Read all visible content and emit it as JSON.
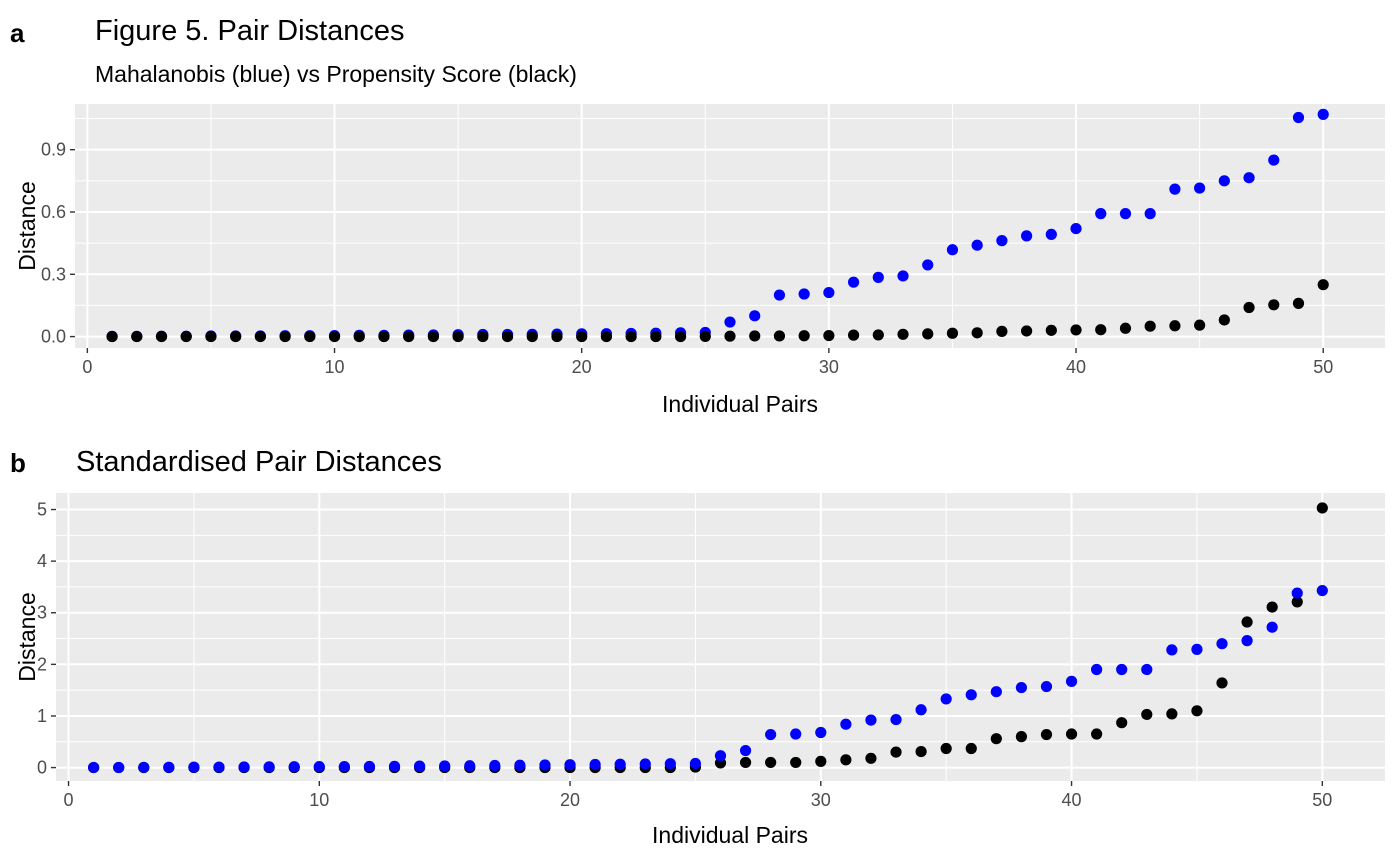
{
  "chart_data": [
    {
      "type": "scatter",
      "panel_tag": "a",
      "title": "Figure 5. Pair Distances",
      "subtitle": "Mahalanobis (blue) vs Propensity Score (black)",
      "xlabel": "Individual Pairs",
      "ylabel": "Distance",
      "xlim": [
        -0.5,
        52.5
      ],
      "ylim": [
        -0.055,
        1.12
      ],
      "x_ticks": [
        0,
        10,
        20,
        30,
        40,
        50
      ],
      "y_ticks": [
        0.0,
        0.3,
        0.6,
        0.9
      ],
      "y_tick_labels": [
        "0.0",
        "0.3",
        "0.6",
        "0.9"
      ],
      "grid": true,
      "series": [
        {
          "color": "#0000ff",
          "x": [
            1,
            2,
            3,
            4,
            5,
            6,
            7,
            8,
            9,
            10,
            11,
            12,
            13,
            14,
            15,
            16,
            17,
            18,
            19,
            20,
            21,
            22,
            23,
            24,
            25,
            26,
            27,
            28,
            29,
            30,
            31,
            32,
            33,
            34,
            35,
            36,
            37,
            38,
            39,
            40,
            41,
            42,
            43,
            44,
            45,
            46,
            47,
            48,
            49,
            50
          ],
          "y": [
            0.001,
            0.001,
            0.002,
            0.002,
            0.003,
            0.003,
            0.003,
            0.004,
            0.004,
            0.005,
            0.006,
            0.006,
            0.007,
            0.008,
            0.009,
            0.01,
            0.01,
            0.011,
            0.012,
            0.013,
            0.014,
            0.015,
            0.016,
            0.018,
            0.02,
            0.07,
            0.1,
            0.2,
            0.205,
            0.212,
            0.262,
            0.285,
            0.292,
            0.345,
            0.418,
            0.44,
            0.462,
            0.485,
            0.492,
            0.52,
            0.592,
            0.592,
            0.592,
            0.71,
            0.715,
            0.75,
            0.765,
            0.85,
            1.055,
            1.07
          ]
        },
        {
          "color": "#000000",
          "x": [
            1,
            2,
            3,
            4,
            5,
            6,
            7,
            8,
            9,
            10,
            11,
            12,
            13,
            14,
            15,
            16,
            17,
            18,
            19,
            20,
            21,
            22,
            23,
            24,
            25,
            26,
            27,
            28,
            29,
            30,
            31,
            32,
            33,
            34,
            35,
            36,
            37,
            38,
            39,
            40,
            41,
            42,
            43,
            44,
            45,
            46,
            47,
            48,
            49,
            50
          ],
          "y": [
            0.0,
            0.0,
            0.0,
            0.0,
            0.0,
            0.0,
            0.0,
            0.0,
            0.0,
            0.0,
            0.0,
            0.0,
            0.0,
            0.0,
            0.0,
            0.0,
            0.0,
            0.0,
            0.0,
            0.0,
            0.0,
            0.0,
            0.0,
            0.0,
            0.001,
            0.002,
            0.003,
            0.003,
            0.004,
            0.005,
            0.007,
            0.008,
            0.011,
            0.013,
            0.016,
            0.018,
            0.025,
            0.027,
            0.03,
            0.032,
            0.033,
            0.04,
            0.05,
            0.052,
            0.055,
            0.08,
            0.14,
            0.153,
            0.16,
            0.25
          ]
        }
      ]
    },
    {
      "type": "scatter",
      "panel_tag": "b",
      "title": "Standardised Pair Distances",
      "subtitle": "",
      "xlabel": "Individual Pairs",
      "ylabel": "Distance",
      "xlim": [
        -0.5,
        52.5
      ],
      "ylim": [
        -0.26,
        5.32
      ],
      "x_ticks": [
        0,
        10,
        20,
        30,
        40,
        50
      ],
      "y_ticks": [
        0,
        1,
        2,
        3,
        4,
        5
      ],
      "y_tick_labels": [
        "0",
        "1",
        "2",
        "3",
        "4",
        "5"
      ],
      "grid": true,
      "series": [
        {
          "color": "#000000",
          "x": [
            1,
            2,
            3,
            4,
            5,
            6,
            7,
            8,
            9,
            10,
            11,
            12,
            13,
            14,
            15,
            16,
            17,
            18,
            19,
            20,
            21,
            22,
            23,
            24,
            25,
            26,
            27,
            28,
            29,
            30,
            31,
            32,
            33,
            34,
            35,
            36,
            37,
            38,
            39,
            40,
            41,
            42,
            43,
            44,
            45,
            46,
            47,
            48,
            49,
            50
          ],
          "y": [
            0.0,
            0.0,
            0.0,
            0.0,
            0.0,
            0.0,
            0.0,
            0.0,
            0.0,
            0.0,
            0.0,
            0.0,
            0.0,
            0.0,
            0.0,
            0.0,
            0.0,
            0.0,
            0.0,
            0.0,
            0.0,
            0.0,
            0.0,
            0.0,
            0.01,
            0.09,
            0.1,
            0.1,
            0.1,
            0.12,
            0.15,
            0.18,
            0.3,
            0.31,
            0.37,
            0.37,
            0.56,
            0.6,
            0.64,
            0.65,
            0.65,
            0.87,
            1.03,
            1.04,
            1.1,
            1.64,
            2.82,
            3.11,
            3.21,
            5.03
          ]
        },
        {
          "color": "#0000ff",
          "x": [
            1,
            2,
            3,
            4,
            5,
            6,
            7,
            8,
            9,
            10,
            11,
            12,
            13,
            14,
            15,
            16,
            17,
            18,
            19,
            20,
            21,
            22,
            23,
            24,
            25,
            26,
            27,
            28,
            29,
            30,
            31,
            32,
            33,
            34,
            35,
            36,
            37,
            38,
            39,
            40,
            41,
            42,
            43,
            44,
            45,
            46,
            47,
            48,
            49,
            50
          ],
          "y": [
            0.002,
            0.003,
            0.005,
            0.007,
            0.009,
            0.01,
            0.012,
            0.014,
            0.016,
            0.018,
            0.02,
            0.022,
            0.025,
            0.028,
            0.031,
            0.035,
            0.04,
            0.045,
            0.05,
            0.055,
            0.06,
            0.065,
            0.07,
            0.075,
            0.08,
            0.23,
            0.33,
            0.64,
            0.65,
            0.68,
            0.84,
            0.92,
            0.93,
            1.12,
            1.33,
            1.41,
            1.47,
            1.55,
            1.57,
            1.67,
            1.9,
            1.9,
            1.9,
            2.28,
            2.29,
            2.4,
            2.46,
            2.72,
            3.38,
            3.43
          ]
        }
      ]
    }
  ]
}
